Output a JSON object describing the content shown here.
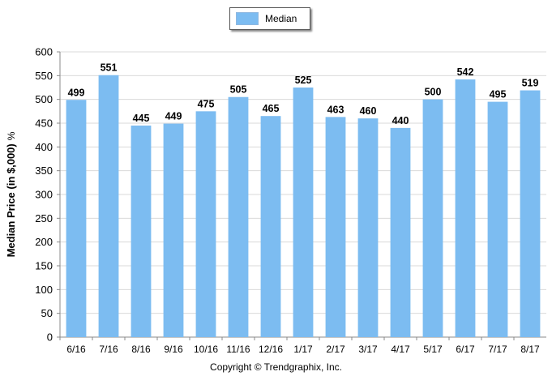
{
  "chart_data": {
    "type": "bar",
    "categories": [
      "6/16",
      "7/16",
      "8/16",
      "9/16",
      "10/16",
      "11/16",
      "12/16",
      "1/17",
      "2/17",
      "3/17",
      "4/17",
      "5/17",
      "6/17",
      "7/17",
      "8/17"
    ],
    "series": [
      {
        "name": "Median",
        "values": [
          499,
          551,
          445,
          449,
          475,
          505,
          465,
          525,
          463,
          460,
          440,
          500,
          542,
          495,
          519
        ]
      }
    ],
    "ylabel": "Median Price (in $,000)",
    "ylabel_suffix": "%",
    "ylim": [
      0,
      600
    ],
    "yticks": [
      0,
      50,
      100,
      150,
      200,
      250,
      300,
      350,
      400,
      450,
      500,
      550,
      600
    ],
    "grid": true,
    "legend_placement": "top-center",
    "bar_color": "#7cbcf1"
  },
  "footer": {
    "copyright": "Copyright © Trendgraphix, Inc."
  }
}
